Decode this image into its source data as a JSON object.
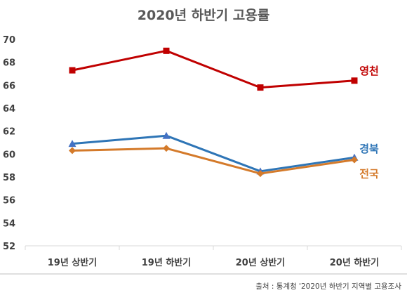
{
  "chart_data": {
    "type": "line",
    "title": "2020년 하반기 고용률",
    "categories": [
      "19년 상반기",
      "19년 하반기",
      "20년 상반기",
      "20년 하반기"
    ],
    "ylim": [
      52,
      70
    ],
    "yticks": [
      52,
      54,
      56,
      58,
      60,
      62,
      64,
      66,
      68,
      70
    ],
    "grid": false,
    "series": [
      {
        "name": "영천",
        "values": [
          67.3,
          69.0,
          65.8,
          66.4
        ],
        "color": "#C00000",
        "marker": "square"
      },
      {
        "name": "경북",
        "values": [
          60.9,
          61.6,
          58.5,
          59.7
        ],
        "color": "#2E75B6",
        "marker": "triangle"
      },
      {
        "name": "전국",
        "values": [
          60.3,
          60.5,
          58.3,
          59.5
        ],
        "color": "#D47A2A",
        "marker": "diamond"
      }
    ],
    "source": "출처 : 통계청 '2020년 하반기 지역별 고용조사"
  }
}
